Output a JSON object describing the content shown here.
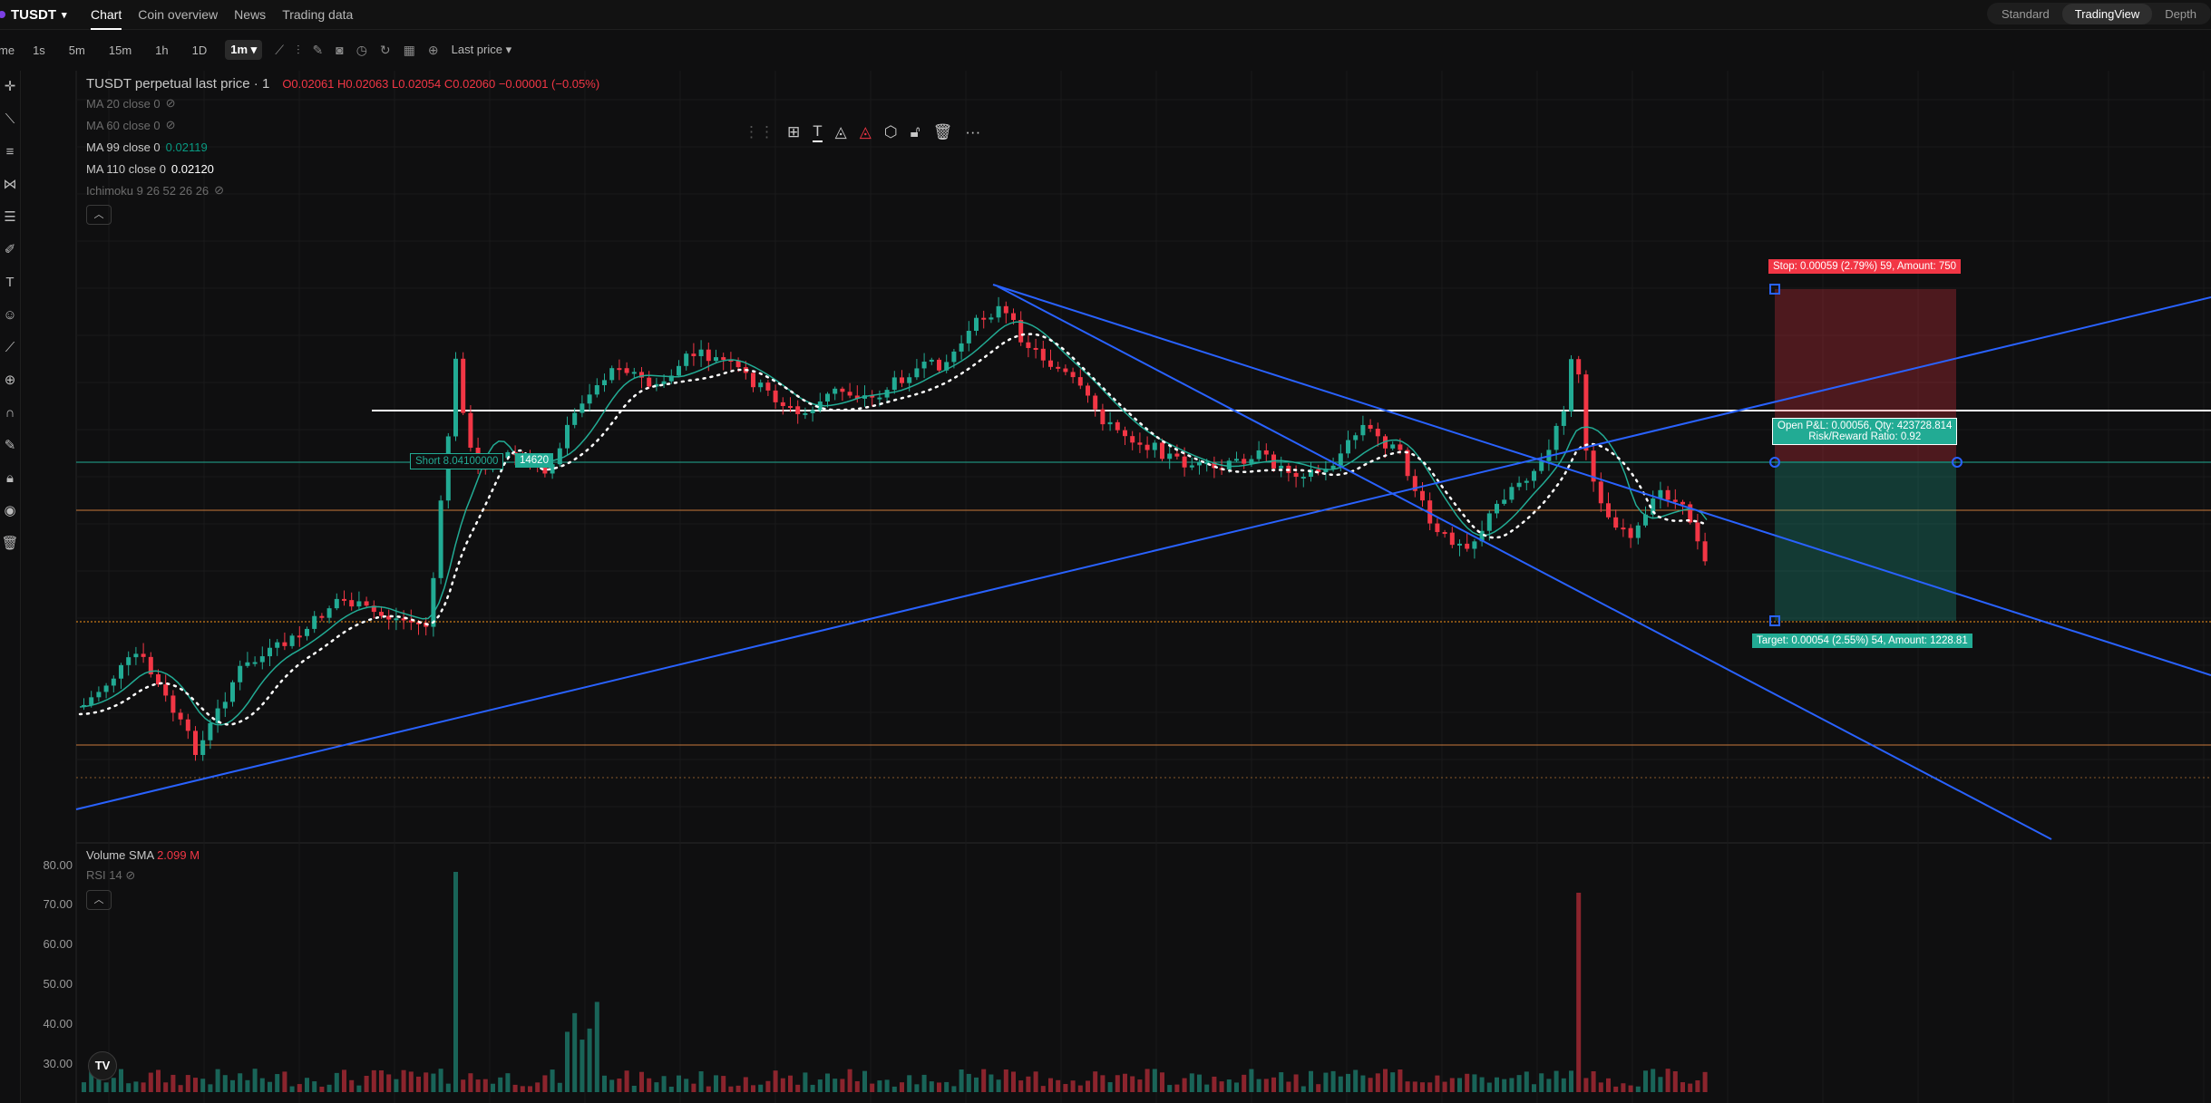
{
  "header": {
    "symbol": "TUSDT",
    "symbol_caret": "▾",
    "tabs": [
      "Chart",
      "Coin overview",
      "News",
      "Trading data"
    ],
    "views": [
      "Standard",
      "TradingView",
      "Depth"
    ]
  },
  "toolbar": {
    "time_label": "me",
    "intervals": [
      "1s",
      "5m",
      "15m",
      "1h",
      "1D",
      "1m ▾"
    ],
    "price_source": "Last price ▾"
  },
  "legend": {
    "title": "TUSDT perpetual last price · 1",
    "ohlc": "O0.02061  H0.02063  L0.02054  C0.02060  −0.00001 (−0.05%)",
    "ma20": "MA 20 close 0",
    "ma60": "MA 60 close 0",
    "ma99_label": "MA 99 close 0",
    "ma99_value": "0.02119",
    "ma110_label": "MA 110 close 0",
    "ma110_value": "0.02120",
    "ichimoku": "Ichimoku 9 26 52 26 26"
  },
  "position": {
    "short_label": "Short 8.04100000",
    "short_qty": "14620",
    "stop": "Stop: 0.00059 (2.79%) 59, Amount: 750",
    "open_pnl": "Open P&L: 0.00056, Qty: 423728.814",
    "rr": "Risk/Reward Ratio: 0.92",
    "target": "Target: 0.00054 (2.55%) 54, Amount: 1228.81"
  },
  "volume_pane": {
    "title": "Volume SMA",
    "value": "2.099 M",
    "rsi": "RSI 14",
    "y_ticks": [
      "80.00",
      "70.00",
      "60.00",
      "50.00",
      "40.00",
      "30.00"
    ]
  },
  "colors": {
    "up": "#22ab94",
    "down": "#f23645",
    "trendline": "#2962ff",
    "orange_line": "#f7931a"
  },
  "icons": [
    "crosshair-icon",
    "trendline-icon",
    "fib-icon",
    "pattern-icon",
    "text-icon",
    "emoji-icon",
    "ruler-icon",
    "zoom-icon",
    "magnet-icon",
    "lock-icon",
    "eye-icon",
    "trash-icon"
  ]
}
